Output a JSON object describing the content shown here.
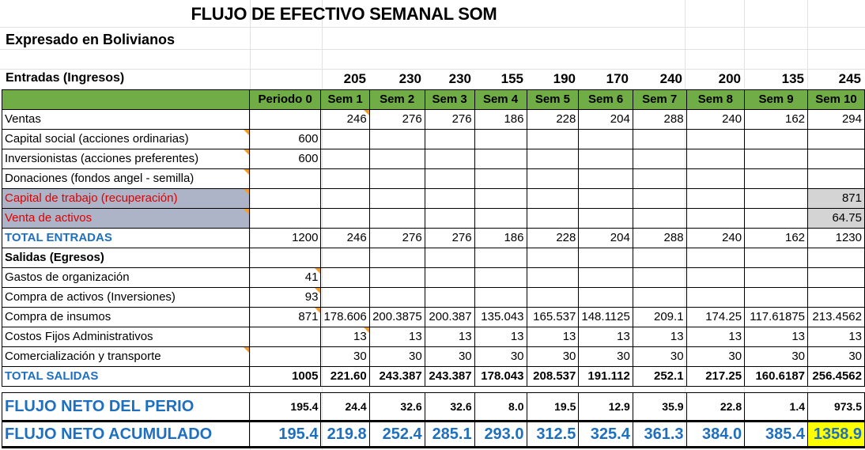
{
  "title": "FLUJO DE EFECTIVO SEMANAL SOM",
  "subtitle": "Expresado en Bolivianos",
  "entradas_heading": "Entradas (Ingresos)",
  "top_numbers": [
    "205",
    "230",
    "230",
    "155",
    "190",
    "170",
    "240",
    "200",
    "135",
    "245"
  ],
  "columns": [
    "Periodo 0",
    "Sem 1",
    "Sem 2",
    "Sem 3",
    "Sem 4",
    "Sem 5",
    "Sem 6",
    "Sem 7",
    "Sem 8",
    "Sem 9",
    "Sem 10"
  ],
  "rows": {
    "ventas": {
      "label": "Ventas",
      "values": [
        "",
        "246",
        "276",
        "276",
        "186",
        "228",
        "204",
        "288",
        "240",
        "162",
        "294"
      ]
    },
    "capital_social": {
      "label": "Capital social (acciones ordinarias)",
      "values": [
        "600",
        "",
        "",
        "",
        "",
        "",
        "",
        "",
        "",
        "",
        ""
      ]
    },
    "inversionistas": {
      "label": "Inversionistas (acciones preferentes)",
      "values": [
        "600",
        "",
        "",
        "",
        "",
        "",
        "",
        "",
        "",
        "",
        ""
      ]
    },
    "donaciones": {
      "label": "Donaciones (fondos angel - semilla)",
      "values": [
        "",
        "",
        "",
        "",
        "",
        "",
        "",
        "",
        "",
        "",
        ""
      ]
    },
    "capital_trabajo": {
      "label": "Capital de trabajo (recuperación)",
      "values": [
        "",
        "",
        "",
        "",
        "",
        "",
        "",
        "",
        "",
        "",
        "871"
      ]
    },
    "venta_activos": {
      "label": "Venta de activos",
      "values": [
        "",
        "",
        "",
        "",
        "",
        "",
        "",
        "",
        "",
        "",
        "64.75"
      ]
    },
    "total_entradas": {
      "label": "TOTAL ENTRADAS",
      "values": [
        "1200",
        "246",
        "276",
        "276",
        "186",
        "228",
        "204",
        "288",
        "240",
        "162",
        "1230"
      ]
    },
    "salidas_heading": {
      "label": "Salidas (Egresos)"
    },
    "gastos_org": {
      "label": "Gastos de organización",
      "values": [
        "41",
        "",
        "",
        "",
        "",
        "",
        "",
        "",
        "",
        "",
        ""
      ]
    },
    "compra_activos": {
      "label": "Compra de activos (Inversiones)",
      "values": [
        "93",
        "",
        "",
        "",
        "",
        "",
        "",
        "",
        "",
        "",
        ""
      ]
    },
    "compra_insumos": {
      "label": "Compra de insumos",
      "values": [
        "871",
        "178.606",
        "200.3875",
        "200.387",
        "135.043",
        "165.537",
        "148.1125",
        "209.1",
        "174.25",
        "117.61875",
        "213.4562"
      ]
    },
    "costos_fijos": {
      "label": "Costos Fijos Administrativos",
      "values": [
        "",
        "13",
        "13",
        "13",
        "13",
        "13",
        "13",
        "13",
        "13",
        "13",
        "13"
      ]
    },
    "comercializacion": {
      "label": "Comercialización y transporte",
      "values": [
        "",
        "30",
        "30",
        "30",
        "30",
        "30",
        "30",
        "30",
        "30",
        "30",
        "30"
      ]
    },
    "total_salidas": {
      "label": "TOTAL SALIDAS",
      "values": [
        "1005",
        "221.60",
        "243.387",
        "243.387",
        "178.043",
        "208.537",
        "191.112",
        "252.1",
        "217.25",
        "160.6187",
        "256.4562"
      ]
    },
    "flujo_neto": {
      "label": "FLUJO NETO DEL PERIO",
      "values": [
        "195.4",
        "24.4",
        "32.6",
        "32.6",
        "8.0",
        "19.5",
        "12.9",
        "35.9",
        "22.8",
        "1.4",
        "973.5"
      ]
    },
    "flujo_acumulado": {
      "label": "FLUJO NETO ACUMULADO",
      "values": [
        "195.4",
        "219.8",
        "252.4",
        "285.1",
        "293.0",
        "312.5",
        "325.4",
        "361.3",
        "384.0",
        "385.4",
        "1358.9"
      ]
    }
  },
  "colors": {
    "header_green": "#70ad47",
    "accent_blue": "#1f6fbf",
    "red_text": "#e00000",
    "highlight_yellow": "#ffff00",
    "note_marker": "#f0a020"
  }
}
